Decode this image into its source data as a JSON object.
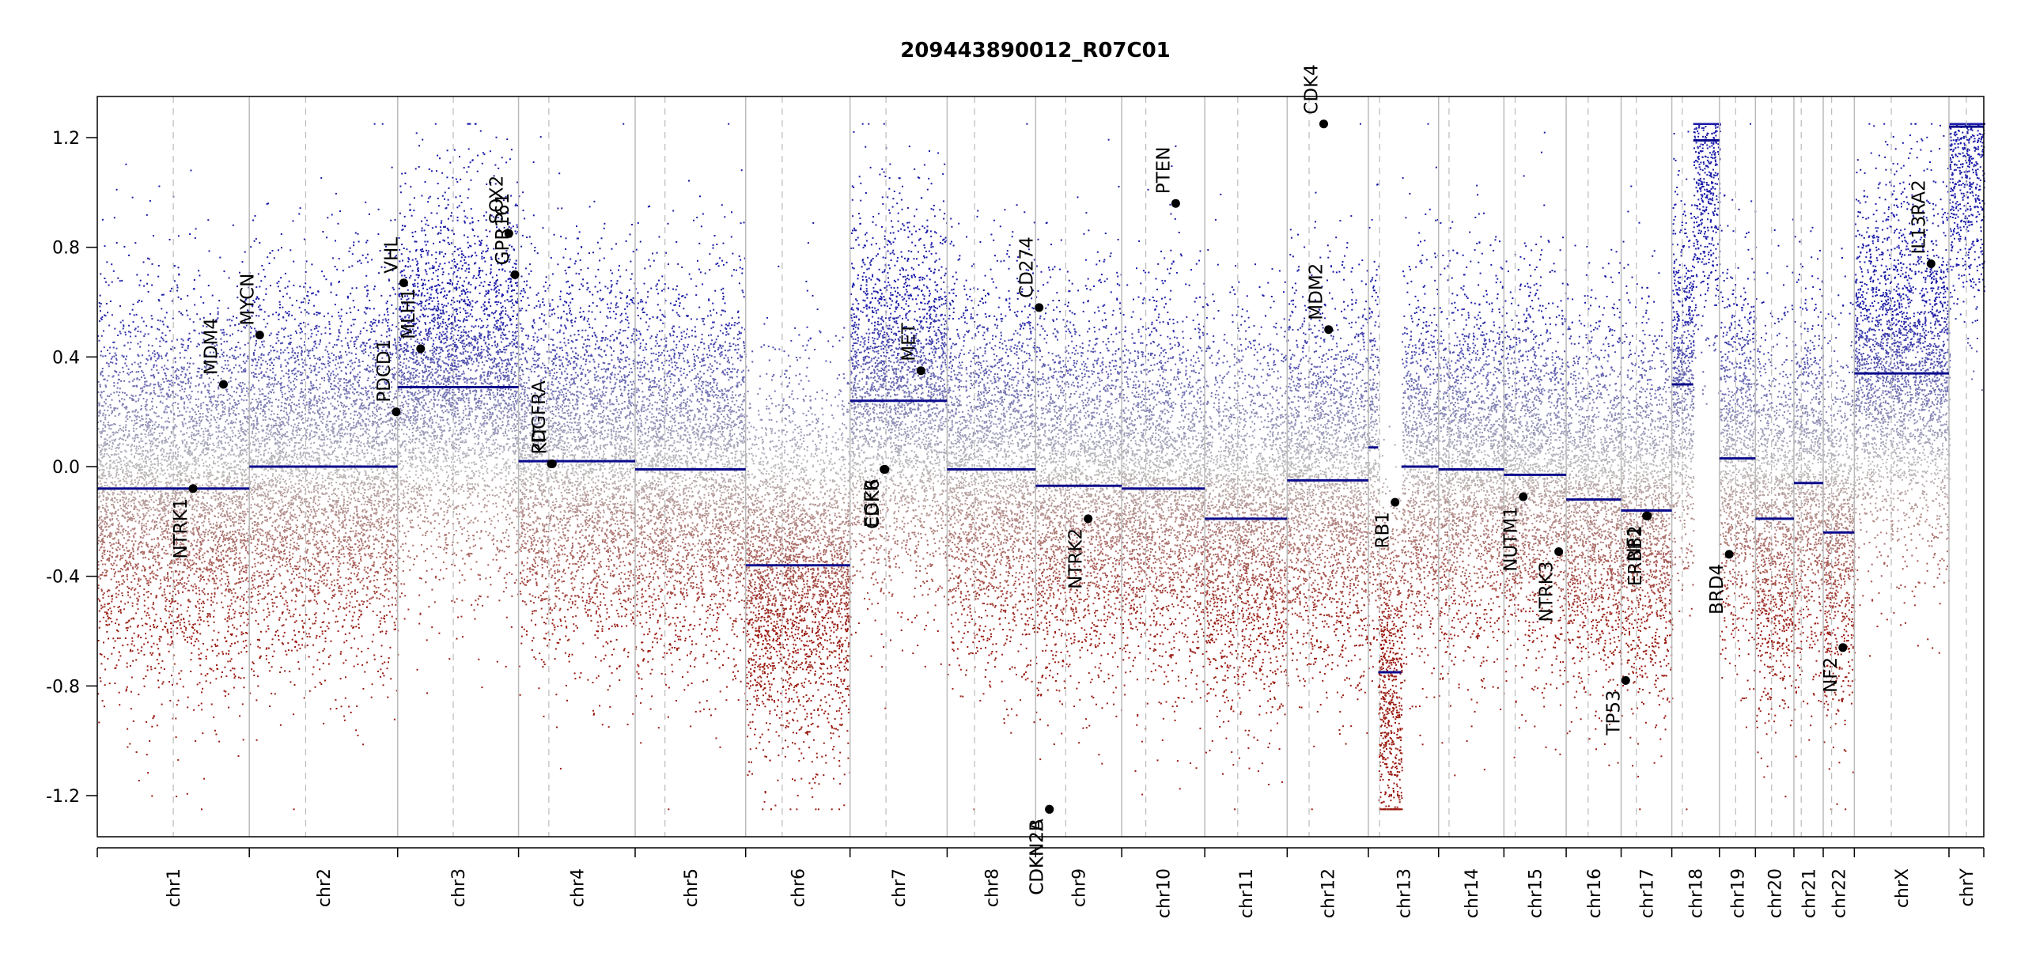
{
  "chart_data": {
    "type": "scatter",
    "title": "209443890012_R07C01",
    "xlabel": "",
    "ylabel": "",
    "ylim": [
      -1.35,
      1.35
    ],
    "yticks": [
      -1.2,
      -0.8,
      -0.4,
      0.0,
      0.4,
      0.8,
      1.2
    ],
    "ytick_labels": [
      "-1.2",
      "-0.8",
      "-0.4",
      "0.0",
      "0.4",
      "0.8",
      "1.2"
    ],
    "colors": {
      "gain": "#1a1aa8",
      "loss": "#9a1a10",
      "neutral": "#bcbcbc",
      "segment": "#0a0a8c",
      "grid": "#bbbbbb",
      "gene_dot": "#000000"
    },
    "chromosomes": [
      {
        "name": "chr1",
        "size": 249,
        "centromere": 0.5,
        "segments": [
          {
            "start": 0.0,
            "end": 1.0,
            "value": -0.08
          }
        ]
      },
      {
        "name": "chr2",
        "size": 243,
        "centromere": 0.38,
        "segments": [
          {
            "start": 0.0,
            "end": 1.0,
            "value": 0.0
          }
        ]
      },
      {
        "name": "chr3",
        "size": 198,
        "centromere": 0.46,
        "segments": [
          {
            "start": 0.0,
            "end": 1.0,
            "value": 0.29
          }
        ]
      },
      {
        "name": "chr4",
        "size": 191,
        "centromere": 0.26,
        "segments": [
          {
            "start": 0.0,
            "end": 1.0,
            "value": 0.02
          }
        ]
      },
      {
        "name": "chr5",
        "size": 181,
        "centromere": 0.27,
        "segments": [
          {
            "start": 0.0,
            "end": 1.0,
            "value": -0.01
          }
        ]
      },
      {
        "name": "chr6",
        "size": 171,
        "centromere": 0.35,
        "segments": [
          {
            "start": 0.0,
            "end": 1.0,
            "value": -0.36
          }
        ]
      },
      {
        "name": "chr7",
        "size": 159,
        "centromere": 0.37,
        "segments": [
          {
            "start": 0.0,
            "end": 1.0,
            "value": 0.24
          }
        ]
      },
      {
        "name": "chr8",
        "size": 145,
        "centromere": 0.31,
        "segments": [
          {
            "start": 0.0,
            "end": 1.0,
            "value": -0.01
          }
        ]
      },
      {
        "name": "chr9",
        "size": 141,
        "centromere": 0.35,
        "segments": [
          {
            "start": 0.0,
            "end": 1.0,
            "value": -0.07
          }
        ]
      },
      {
        "name": "chr10",
        "size": 136,
        "centromere": 0.29,
        "segments": [
          {
            "start": 0.0,
            "end": 1.0,
            "value": -0.08
          }
        ]
      },
      {
        "name": "chr11",
        "size": 135,
        "centromere": 0.4,
        "segments": [
          {
            "start": 0.0,
            "end": 1.0,
            "value": -0.19
          }
        ]
      },
      {
        "name": "chr12",
        "size": 133,
        "centromere": 0.27,
        "segments": [
          {
            "start": 0.0,
            "end": 1.0,
            "value": -0.05
          }
        ]
      },
      {
        "name": "chr13",
        "size": 115,
        "centromere": 0.16,
        "segments": [
          {
            "start": 0.0,
            "end": 0.14,
            "value": 0.07
          },
          {
            "start": 0.14,
            "end": 0.47,
            "value": -0.75
          },
          {
            "start": 0.47,
            "end": 1.0,
            "value": 0.0
          }
        ]
      },
      {
        "name": "chr14",
        "size": 107,
        "centromere": 0.16,
        "segments": [
          {
            "start": 0.0,
            "end": 1.0,
            "value": -0.01
          }
        ]
      },
      {
        "name": "chr15",
        "size": 102,
        "centromere": 0.18,
        "segments": [
          {
            "start": 0.0,
            "end": 1.0,
            "value": -0.03
          }
        ]
      },
      {
        "name": "chr16",
        "size": 90,
        "centromere": 0.4,
        "segments": [
          {
            "start": 0.0,
            "end": 1.0,
            "value": -0.12
          }
        ]
      },
      {
        "name": "chr17",
        "size": 83,
        "centromere": 0.3,
        "segments": [
          {
            "start": 0.0,
            "end": 1.0,
            "value": -0.16
          }
        ]
      },
      {
        "name": "chr18",
        "size": 78,
        "centromere": 0.22,
        "segments": [
          {
            "start": 0.0,
            "end": 0.45,
            "value": 0.3
          },
          {
            "start": 0.45,
            "end": 1.0,
            "value": 1.19
          }
        ]
      },
      {
        "name": "chr19",
        "size": 59,
        "centromere": 0.45,
        "segments": [
          {
            "start": 0.0,
            "end": 1.0,
            "value": 0.03
          }
        ]
      },
      {
        "name": "chr20",
        "size": 63,
        "centromere": 0.42,
        "segments": [
          {
            "start": 0.0,
            "end": 1.0,
            "value": -0.19
          }
        ]
      },
      {
        "name": "chr21",
        "size": 48,
        "centromere": 0.25,
        "segments": [
          {
            "start": 0.0,
            "end": 1.0,
            "value": -0.06
          }
        ]
      },
      {
        "name": "chr22",
        "size": 51,
        "centromere": 0.27,
        "segments": [
          {
            "start": 0.0,
            "end": 1.0,
            "value": -0.24
          }
        ]
      },
      {
        "name": "chrX",
        "size": 155,
        "centromere": 0.39,
        "segments": [
          {
            "start": 0.0,
            "end": 1.0,
            "value": 0.34
          }
        ]
      },
      {
        "name": "chrY",
        "size": 57,
        "centromere": 0.5,
        "segments": [
          {
            "start": 0.0,
            "end": 1.0,
            "value": 1.24
          }
        ]
      }
    ],
    "genes": [
      {
        "name": "NTRK1",
        "chr": "chr1",
        "pos": 0.63,
        "value": -0.08
      },
      {
        "name": "MDM4",
        "chr": "chr1",
        "pos": 0.83,
        "value": 0.3
      },
      {
        "name": "MYCN",
        "chr": "chr2",
        "pos": 0.07,
        "value": 0.48
      },
      {
        "name": "PDCD1",
        "chr": "chr2",
        "pos": 0.99,
        "value": 0.2
      },
      {
        "name": "VHL",
        "chr": "chr3",
        "pos": 0.05,
        "value": 0.67
      },
      {
        "name": "MLH1",
        "chr": "chr3",
        "pos": 0.19,
        "value": 0.43
      },
      {
        "name": "SOX2",
        "chr": "chr3",
        "pos": 0.92,
        "value": 0.85
      },
      {
        "name": "GPR161",
        "chr": "chr3",
        "pos": 0.97,
        "value": 0.7
      },
      {
        "name": "PDGFRA",
        "chr": "chr4",
        "pos": 0.28,
        "value": 0.01
      },
      {
        "name": "KIT",
        "chr": "chr4",
        "pos": 0.29,
        "value": 0.01
      },
      {
        "name": "EGFR",
        "chr": "chr7",
        "pos": 0.35,
        "value": -0.01
      },
      {
        "name": "CDK6",
        "chr": "chr7",
        "pos": 0.36,
        "value": -0.01
      },
      {
        "name": "MET",
        "chr": "chr7",
        "pos": 0.73,
        "value": 0.35
      },
      {
        "name": "CD274",
        "chr": "chr9",
        "pos": 0.04,
        "value": 0.58
      },
      {
        "name": "CDKN2A",
        "chr": "chr9",
        "pos": 0.16,
        "value": -1.25
      },
      {
        "name": "CDKN2B",
        "chr": "chr9",
        "pos": 0.16,
        "value": -1.25
      },
      {
        "name": "NTRK2",
        "chr": "chr9",
        "pos": 0.61,
        "value": -0.19
      },
      {
        "name": "PTEN",
        "chr": "chr10",
        "pos": 0.65,
        "value": 0.96
      },
      {
        "name": "CDK4",
        "chr": "chr12",
        "pos": 0.45,
        "value": 1.25
      },
      {
        "name": "MDM2",
        "chr": "chr12",
        "pos": 0.51,
        "value": 0.5
      },
      {
        "name": "RB1",
        "chr": "chr13",
        "pos": 0.38,
        "value": -0.13
      },
      {
        "name": "NUTM1",
        "chr": "chr15",
        "pos": 0.31,
        "value": -0.11
      },
      {
        "name": "NTRK3",
        "chr": "chr15",
        "pos": 0.88,
        "value": -0.31
      },
      {
        "name": "TP53",
        "chr": "chr17",
        "pos": 0.09,
        "value": -0.78
      },
      {
        "name": "NF1",
        "chr": "chr17",
        "pos": 0.5,
        "value": -0.18
      },
      {
        "name": "ERBB2",
        "chr": "chr17",
        "pos": 0.52,
        "value": -0.18
      },
      {
        "name": "BRD4",
        "chr": "chr19",
        "pos": 0.27,
        "value": -0.32
      },
      {
        "name": "NF2",
        "chr": "chr22",
        "pos": 0.63,
        "value": -0.66
      },
      {
        "name": "IL13RA2",
        "chr": "chrX",
        "pos": 0.81,
        "value": 0.74
      }
    ]
  }
}
